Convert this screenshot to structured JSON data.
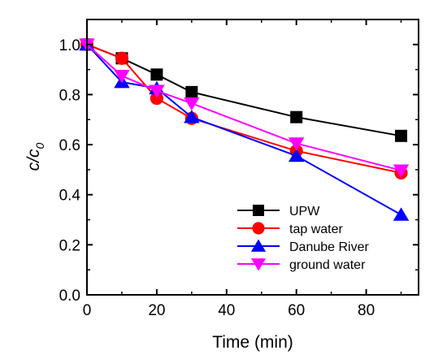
{
  "chart_data": {
    "type": "line",
    "xlabel": "Time (min)",
    "ylabel_main": "c/c",
    "ylabel_sub": "0",
    "xlim": [
      0,
      95
    ],
    "ylim": [
      0.0,
      1.1
    ],
    "xticks": [
      "0",
      "20",
      "40",
      "60",
      "80"
    ],
    "yticks": [
      "0.0",
      "0.2",
      "0.4",
      "0.6",
      "0.8",
      "1.0"
    ],
    "x": [
      0,
      10,
      20,
      30,
      60,
      90
    ],
    "legend_position": "bottom-right",
    "series": [
      {
        "name": "UPW",
        "color": "#000000",
        "marker": "square",
        "values": [
          1.0,
          0.945,
          0.88,
          0.81,
          0.71,
          0.635
        ]
      },
      {
        "name": "tap water",
        "color": "#ff0000",
        "marker": "circle",
        "values": [
          1.0,
          0.945,
          0.785,
          0.705,
          0.575,
          0.487
        ]
      },
      {
        "name": "Danube River",
        "color": "#0000ff",
        "marker": "triangle-up",
        "values": [
          1.0,
          0.85,
          0.825,
          0.71,
          0.555,
          0.32
        ]
      },
      {
        "name": "ground water",
        "color": "#ff00ff",
        "marker": "triangle-down",
        "values": [
          1.0,
          0.875,
          0.815,
          0.765,
          0.605,
          0.497
        ]
      }
    ]
  }
}
